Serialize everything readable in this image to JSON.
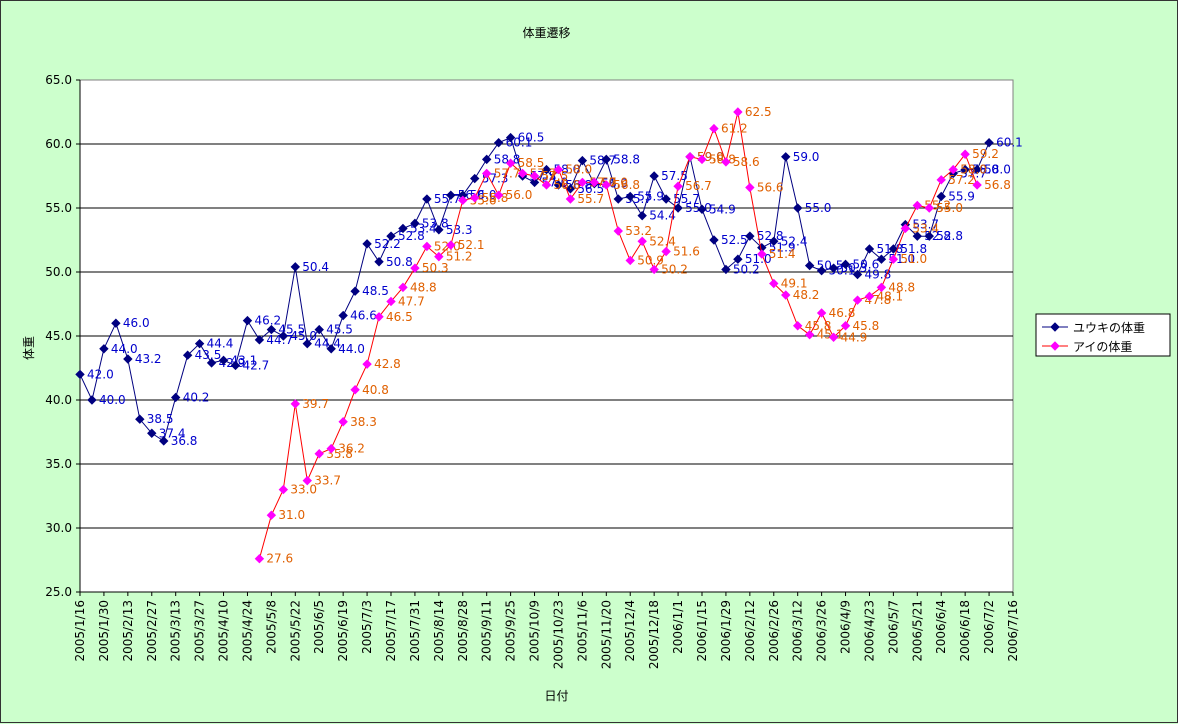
{
  "chart_data": {
    "type": "line",
    "title": "体重遷移",
    "xlabel": "日付",
    "ylabel": "体重",
    "ylim": [
      25,
      65
    ],
    "yticks": [
      "25.0",
      "30.0",
      "35.0",
      "40.0",
      "45.0",
      "50.0",
      "55.0",
      "60.0",
      "65.0"
    ],
    "x_start": "2005-01-16",
    "x_end": "2006-07-16",
    "x_tick_labels": [
      "2005/1/16",
      "2005/1/30",
      "2005/2/13",
      "2005/2/27",
      "2005/3/13",
      "2005/3/27",
      "2005/4/10",
      "2005/4/24",
      "2005/5/8",
      "2005/5/22",
      "2005/6/5",
      "2005/6/19",
      "2005/7/3",
      "2005/7/17",
      "2005/7/31",
      "2005/8/14",
      "2005/8/28",
      "2005/9/11",
      "2005/9/25",
      "2005/10/9",
      "2005/10/23",
      "2005/11/6",
      "2005/11/20",
      "2005/12/4",
      "2005/12/18",
      "2006/1/1",
      "2006/1/15",
      "2006/1/29",
      "2006/2/12",
      "2006/2/26",
      "2006/3/12",
      "2006/3/26",
      "2006/4/9",
      "2006/4/23",
      "2006/5/7",
      "2006/5/21",
      "2006/6/4",
      "2006/6/18",
      "2006/7/2",
      "2006/7/16"
    ],
    "legend_position": "right",
    "grid": "horizontal",
    "series": [
      {
        "name": "ユウキの体重",
        "color": "#000080",
        "label_color": "#0000cc",
        "marker": "diamond",
        "points": [
          [
            "2005-01-16",
            42.0
          ],
          [
            "2005-01-23",
            40.0
          ],
          [
            "2005-01-30",
            44.0
          ],
          [
            "2005-02-06",
            46.0
          ],
          [
            "2005-02-13",
            43.2
          ],
          [
            "2005-02-20",
            38.5
          ],
          [
            "2005-02-27",
            37.4
          ],
          [
            "2005-03-06",
            36.8
          ],
          [
            "2005-03-13",
            40.2
          ],
          [
            "2005-03-20",
            43.5
          ],
          [
            "2005-03-27",
            44.4
          ],
          [
            "2005-04-03",
            42.9
          ],
          [
            "2005-04-10",
            43.1
          ],
          [
            "2005-04-17",
            42.7
          ],
          [
            "2005-04-24",
            46.2
          ],
          [
            "2005-05-01",
            44.7
          ],
          [
            "2005-05-08",
            45.5
          ],
          [
            "2005-05-15",
            45.0
          ],
          [
            "2005-05-22",
            50.4
          ],
          [
            "2005-05-29",
            44.4
          ],
          [
            "2005-06-05",
            45.5
          ],
          [
            "2005-06-12",
            44.0
          ],
          [
            "2005-06-19",
            46.6
          ],
          [
            "2005-06-26",
            48.5
          ],
          [
            "2005-07-03",
            52.2
          ],
          [
            "2005-07-10",
            50.8
          ],
          [
            "2005-07-17",
            52.8
          ],
          [
            "2005-07-24",
            53.4
          ],
          [
            "2005-07-31",
            53.8
          ],
          [
            "2005-08-07",
            55.7
          ],
          [
            "2005-08-14",
            53.3
          ],
          [
            "2005-08-21",
            56.0
          ],
          [
            "2005-08-28",
            56.0
          ],
          [
            "2005-09-04",
            57.3
          ],
          [
            "2005-09-11",
            58.8
          ],
          [
            "2005-09-18",
            60.1
          ],
          [
            "2005-09-25",
            60.5
          ],
          [
            "2005-10-02",
            57.5
          ],
          [
            "2005-10-09",
            57.0
          ],
          [
            "2005-10-16",
            58.0
          ],
          [
            "2005-10-23",
            56.8
          ],
          [
            "2005-10-30",
            56.5
          ],
          [
            "2005-11-06",
            58.7
          ],
          [
            "2005-11-13",
            56.9
          ],
          [
            "2005-11-20",
            58.8
          ],
          [
            "2005-11-27",
            55.7
          ],
          [
            "2005-12-04",
            55.9
          ],
          [
            "2005-12-11",
            54.4
          ],
          [
            "2005-12-18",
            57.5
          ],
          [
            "2005-12-25",
            55.7
          ],
          [
            "2006-01-01",
            55.0
          ],
          [
            "2006-01-08",
            59.0
          ],
          [
            "2006-01-15",
            54.9
          ],
          [
            "2006-01-22",
            52.5
          ],
          [
            "2006-01-29",
            50.2
          ],
          [
            "2006-02-05",
            51.0
          ],
          [
            "2006-02-12",
            52.8
          ],
          [
            "2006-02-19",
            51.9
          ],
          [
            "2006-02-26",
            52.4
          ],
          [
            "2006-03-05",
            59.0
          ],
          [
            "2006-03-12",
            55.0
          ],
          [
            "2006-03-19",
            50.5
          ],
          [
            "2006-03-26",
            50.1
          ],
          [
            "2006-04-02",
            50.3
          ],
          [
            "2006-04-09",
            50.6
          ],
          [
            "2006-04-16",
            49.8
          ],
          [
            "2006-04-23",
            51.8
          ],
          [
            "2006-04-30",
            51.0
          ],
          [
            "2006-05-07",
            51.8
          ],
          [
            "2006-05-14",
            53.7
          ],
          [
            "2006-05-21",
            52.8
          ],
          [
            "2006-05-28",
            52.8
          ],
          [
            "2006-06-04",
            55.9
          ],
          [
            "2006-06-11",
            57.7
          ],
          [
            "2006-06-18",
            58.0
          ],
          [
            "2006-06-25",
            58.0
          ],
          [
            "2006-07-02",
            60.1
          ]
        ],
        "labels": [
          "42.0",
          "40.0",
          "44.0",
          "46.0",
          "43.2",
          "38.5",
          "37.4",
          "36.8",
          "40.2",
          "43.5",
          "44.4",
          "42.9",
          "43.1",
          "42.7",
          "46.2",
          "44.7",
          "45.5",
          "45.0",
          "50.4",
          "44.4",
          "45.5",
          "44.0",
          "46.6",
          "48.5",
          "52.2",
          "50.8",
          "52.8",
          "53.4",
          "53.8",
          "55.7",
          "53.3",
          "56.0",
          "56.0",
          "57.3",
          "58.8",
          "60.1",
          "60.5",
          "57.5",
          "57.0",
          "58.0",
          "56.8",
          "56.5",
          "58.7",
          "56.9",
          "58.8",
          "55.7",
          "55.9",
          "54.4",
          "57.5",
          "55.7",
          "55.0",
          "59.0",
          "54.9",
          "52.5",
          "50.2",
          "51.0",
          "52.8",
          "51.9",
          "52.4",
          "59.0",
          "55.0",
          "50.5",
          "50.1",
          "50.3",
          "50.6",
          "49.8",
          "51.8",
          "51.0",
          "51.8",
          "53.7",
          "52.8",
          "52.8",
          "55.9",
          "57.7",
          "58.0",
          "58.0",
          "60.1"
        ]
      },
      {
        "name": "アイの体重",
        "color": "#ff0000",
        "label_color": "#e06000",
        "marker_color": "#ff00ff",
        "marker": "diamond",
        "points": [
          [
            "2005-05-01",
            27.6
          ],
          [
            "2005-05-08",
            31.0
          ],
          [
            "2005-05-15",
            33.0
          ],
          [
            "2005-05-22",
            39.7
          ],
          [
            "2005-05-29",
            33.7
          ],
          [
            "2005-06-05",
            35.8
          ],
          [
            "2005-06-12",
            36.2
          ],
          [
            "2005-06-19",
            38.3
          ],
          [
            "2005-06-26",
            40.8
          ],
          [
            "2005-07-03",
            42.8
          ],
          [
            "2005-07-10",
            46.5
          ],
          [
            "2005-07-17",
            47.7
          ],
          [
            "2005-07-24",
            48.8
          ],
          [
            "2005-07-31",
            50.3
          ],
          [
            "2005-08-07",
            52.0
          ],
          [
            "2005-08-14",
            51.2
          ],
          [
            "2005-08-21",
            52.1
          ],
          [
            "2005-08-28",
            55.6
          ],
          [
            "2005-09-04",
            55.8
          ],
          [
            "2005-09-11",
            57.7
          ],
          [
            "2005-09-18",
            56.0
          ],
          [
            "2005-09-25",
            58.5
          ],
          [
            "2005-10-02",
            57.7
          ],
          [
            "2005-10-09",
            57.5
          ],
          [
            "2005-10-16",
            56.8
          ],
          [
            "2005-10-23",
            58.0
          ],
          [
            "2005-10-30",
            55.7
          ],
          [
            "2005-11-06",
            57.0
          ],
          [
            "2005-11-13",
            57.0
          ],
          [
            "2005-11-20",
            56.8
          ],
          [
            "2005-11-27",
            53.2
          ],
          [
            "2005-12-04",
            50.9
          ],
          [
            "2005-12-11",
            52.4
          ],
          [
            "2005-12-18",
            50.2
          ],
          [
            "2005-12-25",
            51.6
          ],
          [
            "2006-01-01",
            56.7
          ],
          [
            "2006-01-08",
            59.0
          ],
          [
            "2006-01-15",
            58.8
          ],
          [
            "2006-01-22",
            61.2
          ],
          [
            "2006-01-29",
            58.6
          ],
          [
            "2006-02-05",
            62.5
          ],
          [
            "2006-02-12",
            56.6
          ],
          [
            "2006-02-19",
            51.4
          ],
          [
            "2006-02-26",
            49.1
          ],
          [
            "2006-03-05",
            48.2
          ],
          [
            "2006-03-12",
            45.8
          ],
          [
            "2006-03-19",
            45.1
          ],
          [
            "2006-03-26",
            46.8
          ],
          [
            "2006-04-02",
            44.9
          ],
          [
            "2006-04-09",
            45.8
          ],
          [
            "2006-04-16",
            47.8
          ],
          [
            "2006-04-23",
            48.1
          ],
          [
            "2006-04-30",
            48.8
          ],
          [
            "2006-05-07",
            51.0
          ],
          [
            "2006-05-14",
            53.4
          ],
          [
            "2006-05-21",
            55.2
          ],
          [
            "2006-05-28",
            55.0
          ],
          [
            "2006-06-04",
            57.2
          ],
          [
            "2006-06-11",
            58.0
          ],
          [
            "2006-06-18",
            59.2
          ],
          [
            "2006-06-25",
            56.8
          ]
        ],
        "labels": [
          "27.6",
          "31.0",
          "33.0",
          "39.7",
          "33.7",
          "35.8",
          "36.2",
          "38.3",
          "40.8",
          "42.8",
          "46.5",
          "47.7",
          "48.8",
          "50.3",
          "52.0",
          "51.2",
          "52.1",
          "55.6",
          "55.8",
          "57.7",
          "56.0",
          "58.5",
          "57.7",
          "57.5",
          "56.8",
          "58.0",
          "55.7",
          "57.0",
          "57.0",
          "56.8",
          "53.2",
          "50.9",
          "52.4",
          "50.2",
          "51.6",
          "56.7",
          "59.0",
          "58.8",
          "61.2",
          "58.6",
          "62.5",
          "56.6",
          "51.4",
          "49.1",
          "48.2",
          "45.8",
          "45.1",
          "46.8",
          "44.9",
          "45.8",
          "47.8",
          "48.1",
          "48.8",
          "51.0",
          "53.4",
          "55.2",
          "55.0",
          "57.2",
          "58.0",
          "59.2",
          "56.8"
        ]
      }
    ]
  }
}
